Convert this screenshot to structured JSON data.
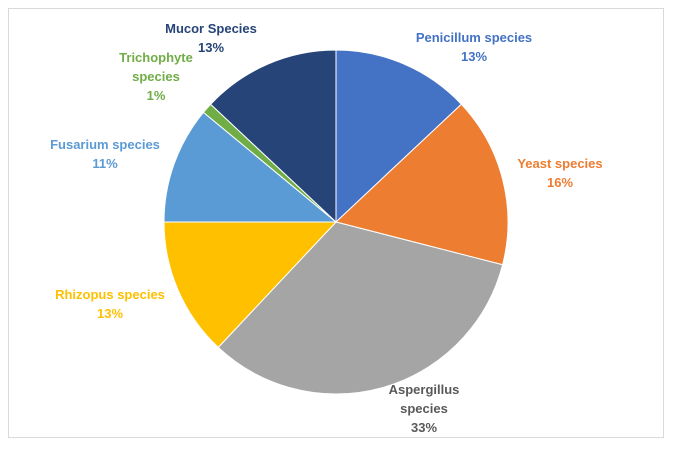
{
  "chart_data": {
    "type": "pie",
    "title": "",
    "slices": [
      {
        "label": "Penicillum species",
        "value": 13,
        "display": "13%",
        "color": "#4472c4",
        "label_color": "#4472c4"
      },
      {
        "label": "Yeast species",
        "value": 16,
        "display": "16%",
        "color": "#ed7d31",
        "label_color": "#ed7d31"
      },
      {
        "label": "Aspergillus species",
        "value": 33,
        "display": "33%",
        "color": "#a5a5a5",
        "label_color": "#595959"
      },
      {
        "label": "Rhizopus species",
        "value": 13,
        "display": "13%",
        "color": "#ffc000",
        "label_color": "#ffc000"
      },
      {
        "label": "Fusarium species",
        "value": 11,
        "display": "11%",
        "color": "#5b9bd5",
        "label_color": "#5b9bd5"
      },
      {
        "label": "Trichophyte species",
        "value": 1,
        "display": "1%",
        "color": "#70ad47",
        "label_color": "#70ad47"
      },
      {
        "label": "Mucor Species",
        "value": 13,
        "display": "13%",
        "color": "#264478",
        "label_color": "#264478"
      }
    ],
    "legend": "none",
    "labels": "outside"
  }
}
